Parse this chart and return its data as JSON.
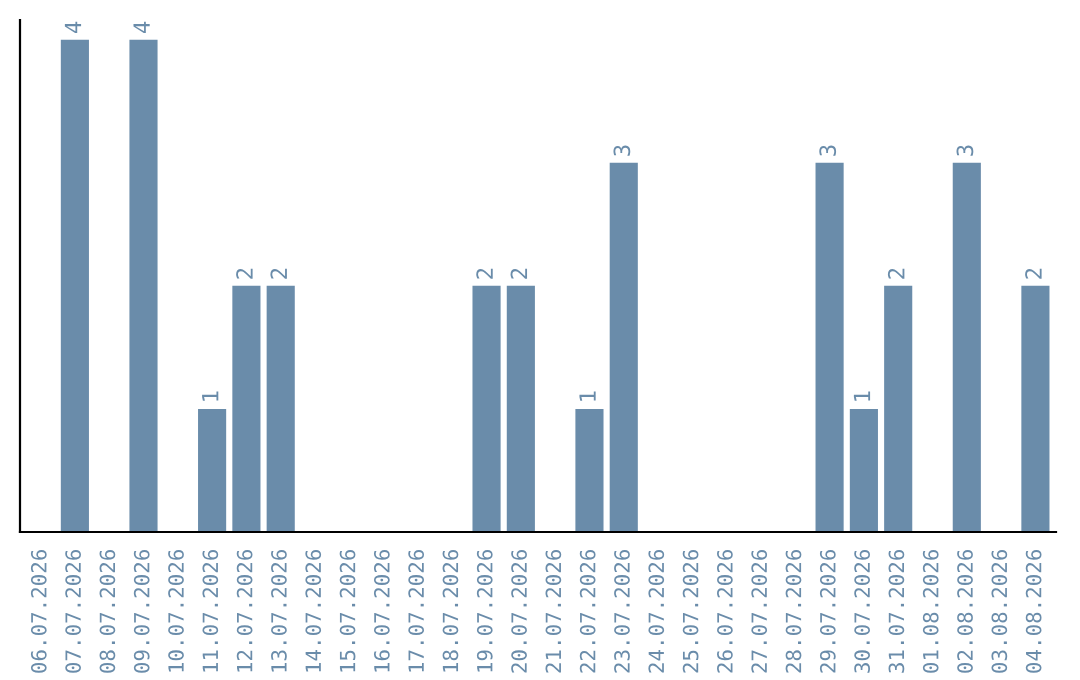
{
  "chart_data": {
    "type": "bar",
    "categories": [
      "06.07.2026",
      "07.07.2026",
      "08.07.2026",
      "09.07.2026",
      "10.07.2026",
      "11.07.2026",
      "12.07.2026",
      "13.07.2026",
      "14.07.2026",
      "15.07.2026",
      "16.07.2026",
      "17.07.2026",
      "18.07.2026",
      "19.07.2026",
      "20.07.2026",
      "21.07.2026",
      "22.07.2026",
      "23.07.2026",
      "24.07.2026",
      "25.07.2026",
      "26.07.2026",
      "27.07.2026",
      "28.07.2026",
      "29.07.2026",
      "30.07.2026",
      "31.07.2026",
      "01.08.2026",
      "02.08.2026",
      "03.08.2026",
      "04.08.2026"
    ],
    "values": [
      0,
      4,
      0,
      4,
      0,
      1,
      2,
      2,
      0,
      0,
      0,
      0,
      0,
      2,
      2,
      0,
      1,
      3,
      0,
      0,
      0,
      0,
      0,
      3,
      1,
      2,
      0,
      3,
      0,
      2
    ],
    "value_labels": [
      null,
      "4",
      null,
      "4",
      null,
      "1",
      "2",
      "2",
      null,
      null,
      null,
      null,
      null,
      "2",
      "2",
      null,
      "1",
      "3",
      null,
      null,
      null,
      null,
      null,
      "3",
      "1",
      "2",
      null,
      "3",
      null,
      "2"
    ],
    "color": "#6a8caa",
    "grid": false,
    "legend": false
  }
}
